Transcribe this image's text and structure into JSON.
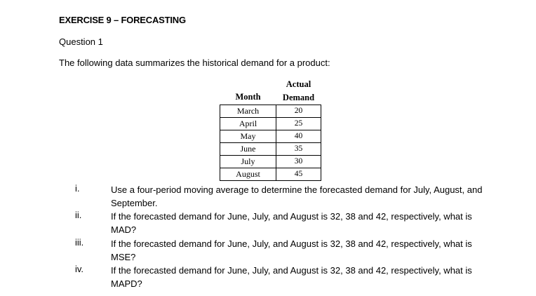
{
  "title": "EXERCISE 9 – FORECASTING",
  "question_label": "Question 1",
  "intro": "The following data summarizes the historical demand for a product:",
  "table": {
    "header_month": "Month",
    "header_demand_line1": "Actual",
    "header_demand_line2": "Demand",
    "rows": [
      {
        "month": "March",
        "demand": "20"
      },
      {
        "month": "April",
        "demand": "25"
      },
      {
        "month": "May",
        "demand": "40"
      },
      {
        "month": "June",
        "demand": "35"
      },
      {
        "month": "July",
        "demand": "30"
      },
      {
        "month": "August",
        "demand": "45"
      }
    ]
  },
  "items": [
    {
      "num": "i.",
      "text": "Use a four-period moving average to determine the forecasted demand for July, August, and September."
    },
    {
      "num": "ii.",
      "text": "If the forecasted demand for June, July, and August is 32, 38 and 42, respectively, what is MAD?"
    },
    {
      "num": "iii.",
      "text": "If the forecasted demand for June, July, and August is 32, 38 and 42, respectively, what is MSE?"
    },
    {
      "num": "iv.",
      "text": "If the forecasted demand for June, July, and August is 32, 38 and 42, respectively, what is MAPD?"
    }
  ]
}
